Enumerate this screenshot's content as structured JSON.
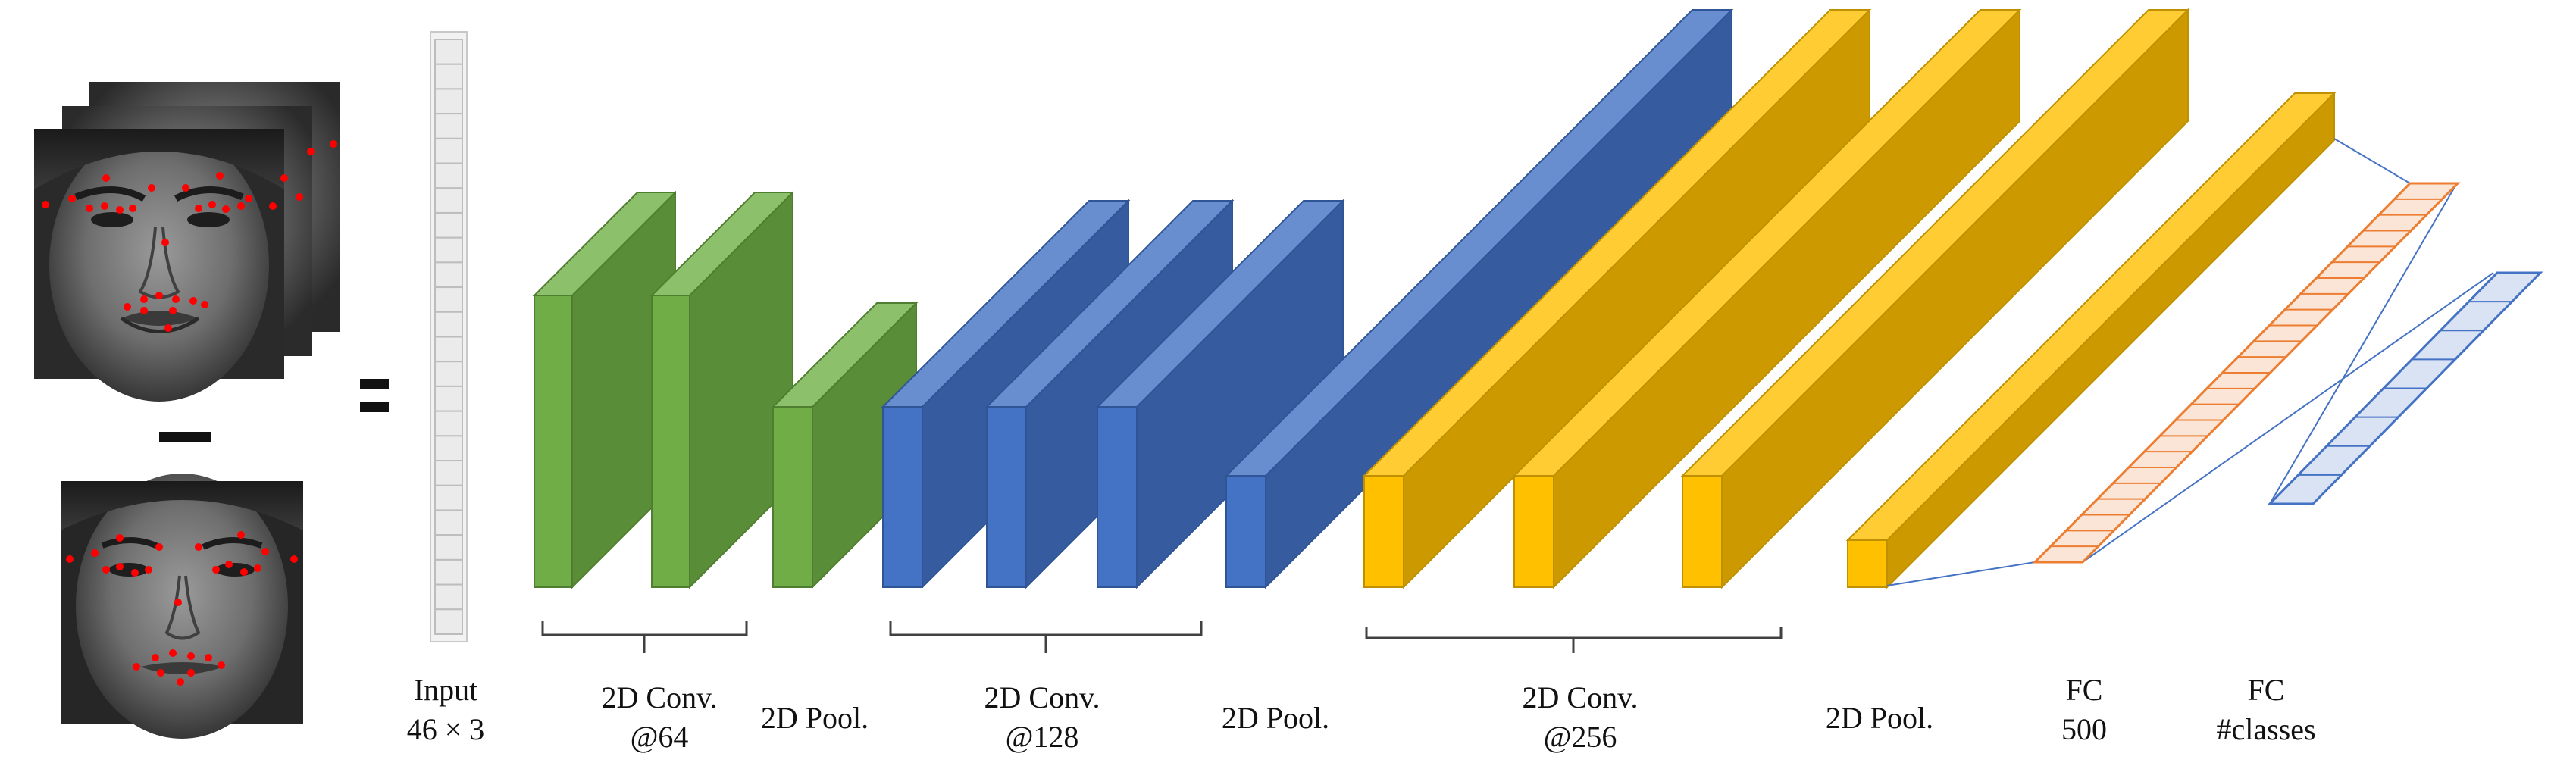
{
  "labels": {
    "input": [
      "Input",
      "46 × 3"
    ],
    "conv64": [
      "2D Conv.",
      "@64"
    ],
    "pool1": [
      "2D Pool."
    ],
    "conv128": [
      "2D Conv.",
      "@128"
    ],
    "pool2": [
      "2D Pool."
    ],
    "conv256": [
      "2D Conv.",
      "@256"
    ],
    "pool3": [
      "2D Pool."
    ],
    "fc500": [
      "FC",
      "500"
    ],
    "fc_classes": [
      "FC",
      "#classes"
    ]
  },
  "symbols": {
    "minus": "minus",
    "equals": "equals"
  },
  "input_vector_cells": 24,
  "fc500_cells": 24,
  "fc_classes_cells": 8,
  "colors": {
    "green_front": "#70AD47",
    "green_top": "#8DC06A",
    "green_side": "#5A8D38",
    "blue_front": "#4472C4",
    "blue_top": "#698ED0",
    "blue_side": "#365C9F",
    "yellow_front": "#FFC000",
    "yellow_top": "#FFCD33",
    "yellow_side": "#CC9A00",
    "fc_orange": "#ED7D31",
    "fc_orange_fill": "#FBE5D6",
    "fc_blue": "#4472C4",
    "fc_blue_fill": "#DAE3F3",
    "landmark": "#FF0000"
  }
}
